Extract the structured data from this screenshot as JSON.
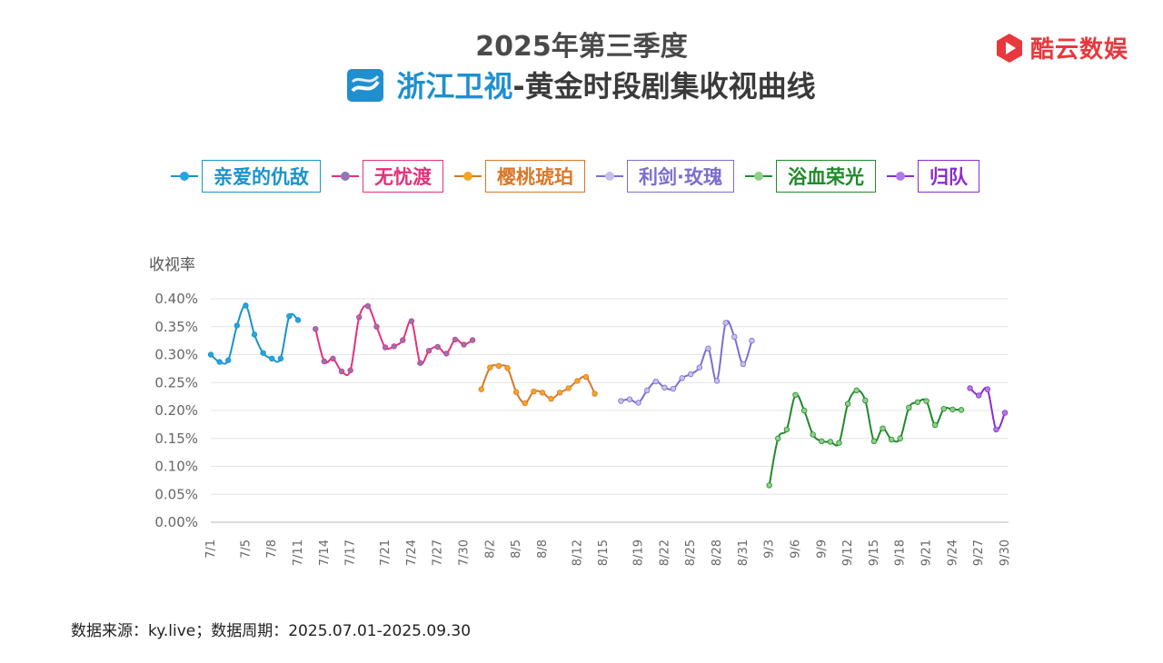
{
  "header": {
    "title_line1": "2025年第三季度",
    "channel_name": "浙江卫视",
    "title_suffix": "-黄金时段剧集收视曲线",
    "brand": "酷云数娱",
    "brand_color": "#e8383d",
    "channel_color": "#1f8fcf"
  },
  "footer": {
    "source": "数据来源：ky.live；数据周期：2025.07.01-2025.09.30"
  },
  "chart_data": {
    "type": "line",
    "ylabel": "收视率",
    "ylim": [
      0,
      0.4
    ],
    "yticks": [
      "0.00%",
      "0.05%",
      "0.10%",
      "0.15%",
      "0.20%",
      "0.25%",
      "0.30%",
      "0.35%",
      "0.40%"
    ],
    "ytick_values": [
      0,
      0.05,
      0.1,
      0.15,
      0.2,
      0.25,
      0.3,
      0.35,
      0.4
    ],
    "x_range": [
      "7/1",
      "9/30"
    ],
    "xtick_labels": [
      "7/1",
      "7/5",
      "7/8",
      "7/11",
      "7/14",
      "7/17",
      "7/21",
      "7/24",
      "7/27",
      "7/30",
      "8/2",
      "8/5",
      "8/8",
      "8/12",
      "8/15",
      "8/19",
      "8/22",
      "8/25",
      "8/28",
      "8/31",
      "9/3",
      "9/6",
      "9/9",
      "9/12",
      "9/15",
      "9/18",
      "9/21",
      "9/24",
      "9/27",
      "9/30"
    ],
    "grid": "horizontal",
    "legend_position": "top",
    "series": [
      {
        "name": "亲爱的仇敌",
        "color": "#1a93cc",
        "marker": "#29a3dd",
        "x": [
          "7/1",
          "7/2",
          "7/3",
          "7/4",
          "7/5",
          "7/6",
          "7/7",
          "7/8",
          "7/9",
          "7/10",
          "7/11",
          "7/12"
        ],
        "values": [
          0.3,
          0.287,
          0.29,
          0.352,
          0.388,
          0.336,
          0.303,
          0.293,
          0.293,
          0.369,
          0.362,
          null
        ]
      },
      {
        "name": "无忧渡",
        "color": "#e5307a",
        "marker": "#8c78b4",
        "x": [
          "7/13",
          "7/14",
          "7/15",
          "7/16",
          "7/17",
          "7/18",
          "7/19",
          "7/20",
          "7/21",
          "7/22",
          "7/23",
          "7/24",
          "7/25",
          "7/26",
          "7/27",
          "7/28",
          "7/29",
          "7/30",
          "7/31"
        ],
        "values": [
          0.346,
          0.288,
          0.293,
          0.27,
          0.272,
          0.367,
          0.387,
          0.35,
          0.313,
          0.315,
          0.326,
          0.36,
          0.285,
          0.307,
          0.314,
          0.302,
          0.327,
          0.318,
          0.326
        ]
      },
      {
        "name": "樱桃琥珀",
        "color": "#d9782a",
        "marker": "#f5a623",
        "x": [
          "8/1",
          "8/2",
          "8/3",
          "8/4",
          "8/5",
          "8/6",
          "8/7",
          "8/8",
          "8/9",
          "8/10",
          "8/11",
          "8/12",
          "8/13",
          "8/14",
          "8/15",
          "8/16"
        ],
        "values": [
          0.238,
          0.277,
          0.28,
          0.276,
          0.233,
          0.213,
          0.234,
          0.232,
          0.221,
          0.232,
          0.24,
          0.253,
          0.26,
          0.23,
          null,
          null
        ]
      },
      {
        "name": "利剑·玫瑰",
        "color": "#7b6fd0",
        "marker": "#c8c0ec",
        "x": [
          "8/17",
          "8/18",
          "8/19",
          "8/20",
          "8/21",
          "8/22",
          "8/23",
          "8/24",
          "8/25",
          "8/26",
          "8/27",
          "8/28",
          "8/29",
          "8/30",
          "8/31",
          "9/1",
          "9/2"
        ],
        "values": [
          0.217,
          0.22,
          0.214,
          0.236,
          0.252,
          0.241,
          0.239,
          0.258,
          0.265,
          0.277,
          0.311,
          0.253,
          0.357,
          0.332,
          0.283,
          0.325,
          null
        ]
      },
      {
        "name": "浴血荣光",
        "color": "#1f8a2a",
        "marker": "#8fd08a",
        "x": [
          "9/3",
          "9/4",
          "9/5",
          "9/6",
          "9/7",
          "9/8",
          "9/9",
          "9/10",
          "9/11",
          "9/12",
          "9/13",
          "9/14",
          "9/15",
          "9/16",
          "9/17",
          "9/18",
          "9/19",
          "9/20",
          "9/21",
          "9/22",
          "9/23",
          "9/24",
          "9/25"
        ],
        "values": [
          0.066,
          0.15,
          0.166,
          0.228,
          0.2,
          0.157,
          0.145,
          0.144,
          0.142,
          0.212,
          0.236,
          0.218,
          0.145,
          0.168,
          0.148,
          0.15,
          0.205,
          0.215,
          0.217,
          0.174,
          0.203,
          0.202,
          0.201
        ]
      },
      {
        "name": "归队",
        "color": "#8a2bd0",
        "marker": "#b07ae8",
        "x": [
          "9/26",
          "9/27",
          "9/28",
          "9/29",
          "9/30"
        ],
        "values": [
          0.24,
          0.227,
          0.238,
          0.166,
          0.196
        ]
      }
    ]
  }
}
